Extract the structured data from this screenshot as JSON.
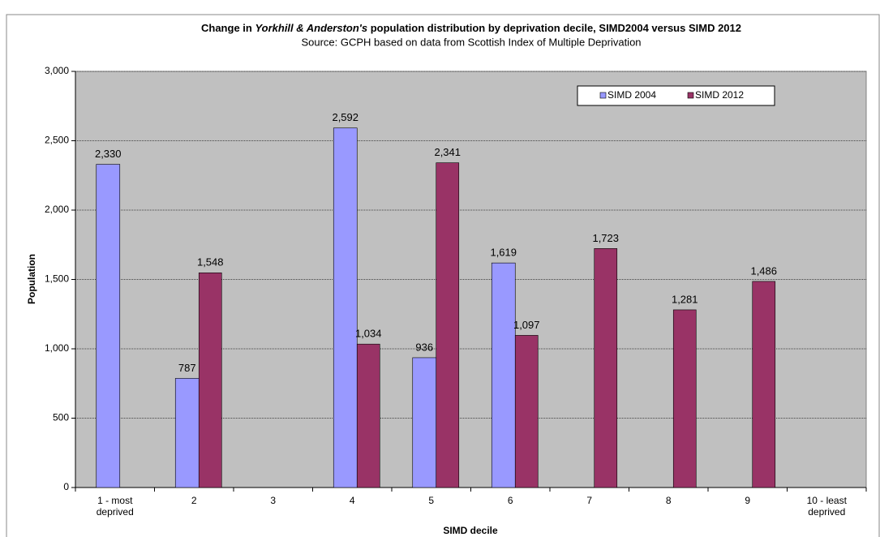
{
  "chart_data": {
    "type": "bar",
    "title": [
      "Change in ",
      "Yorkhill & Anderston's",
      " population distribution by deprivation decile, SIMD2004 versus SIMD 2012"
    ],
    "subtitle": "Source: GCPH based on data from Scottish Index of Multiple  Deprivation",
    "x_label": "SIMD decile",
    "y_label": "Population",
    "categories": [
      "1 - most deprived",
      "2",
      "3",
      "4",
      "5",
      "6",
      "7",
      "8",
      "9",
      "10 - least deprived"
    ],
    "series": [
      {
        "name": "SIMD 2004",
        "color": "#9999ff",
        "values": [
          2330,
          787,
          null,
          2592,
          936,
          1619,
          null,
          null,
          null,
          null
        ],
        "value_labels": [
          "2,330",
          "787",
          null,
          "2,592",
          "936",
          "1,619",
          null,
          null,
          null,
          null
        ]
      },
      {
        "name": "SIMD 2012",
        "color": "#993366",
        "values": [
          null,
          1548,
          null,
          1034,
          2341,
          1097,
          1723,
          1281,
          1486,
          null
        ],
        "value_labels": [
          null,
          "1,548",
          null,
          "1,034",
          "2,341",
          "1,097",
          "1,723",
          "1,281",
          "1,486",
          null
        ]
      }
    ],
    "ylim": [
      0,
      3000
    ],
    "yticks": [
      0,
      500,
      {
        "value": 1000,
        "label": "1,000"
      },
      {
        "value": 1500,
        "label": "1,500"
      },
      {
        "value": 2000,
        "label": "2,000"
      },
      {
        "value": 2500,
        "label": "2,500"
      },
      {
        "value": 3000,
        "label": "3,000"
      }
    ],
    "grid": true,
    "legend": "top-right"
  }
}
